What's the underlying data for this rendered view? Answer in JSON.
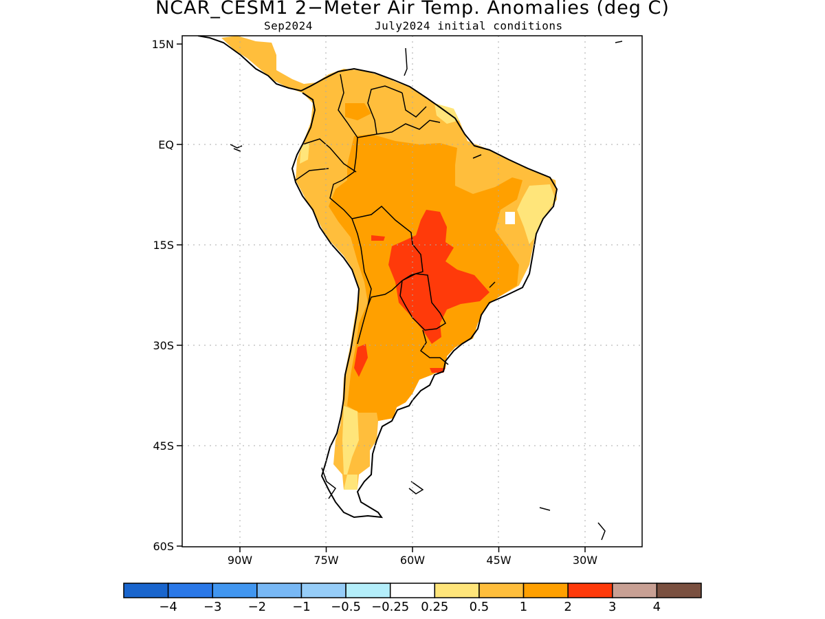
{
  "title": "NCAR_CESM1 2−Meter Air Temp. Anomalies (deg C)",
  "subtitle_left": "Sep2024",
  "subtitle_right": "July2024 initial conditions",
  "lat_ticks": [
    {
      "label": "15N",
      "lat": 15
    },
    {
      "label": "EQ",
      "lat": 0
    },
    {
      "label": "15S",
      "lat": -15
    },
    {
      "label": "30S",
      "lat": -30
    },
    {
      "label": "45S",
      "lat": -45
    },
    {
      "label": "60S",
      "lat": -60
    }
  ],
  "lon_ticks": [
    {
      "label": "90W",
      "lon": -90
    },
    {
      "label": "75W",
      "lon": -75
    },
    {
      "label": "60W",
      "lon": -60
    },
    {
      "label": "45W",
      "lon": -45
    },
    {
      "label": "30W",
      "lon": -30
    }
  ],
  "colorbar": {
    "colors": [
      "#1965cd",
      "#2a78e8",
      "#4196f0",
      "#78b8f5",
      "#96cdf8",
      "#b4eefa",
      "#ffffff",
      "#ffe57a",
      "#ffbe3c",
      "#ffa000",
      "#ff3a0a",
      "#c8a094",
      "#7a5040"
    ],
    "labels": [
      "−4",
      "−3",
      "−2",
      "−1",
      "−0.5",
      "−0.25",
      "0.25",
      "0.5",
      "1",
      "2",
      "3",
      "4"
    ]
  },
  "legend_categories": {
    "light_yellow": "0.25 to 0.5",
    "light_orange": "0.5 to 1",
    "orange": "1 to 2",
    "red": "2 to 3"
  }
}
